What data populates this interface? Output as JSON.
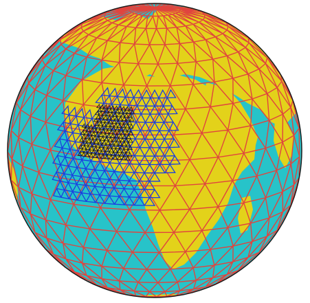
{
  "figure": {
    "kind": "orthographic globe with nested icosahedral triangular grids",
    "colors": {
      "ocean": "#27c3c9",
      "land": "#e3d21a",
      "coarse_grid": "#e0443e",
      "medium_grid": "#1b3de0",
      "fine_grid": "#141414",
      "outline": "#1a1a1a"
    },
    "grid_levels": [
      {
        "name": "coarse",
        "color_key": "coarse_grid"
      },
      {
        "name": "medium",
        "color_key": "medium_grid"
      },
      {
        "name": "fine",
        "color_key": "fine_grid"
      }
    ]
  }
}
